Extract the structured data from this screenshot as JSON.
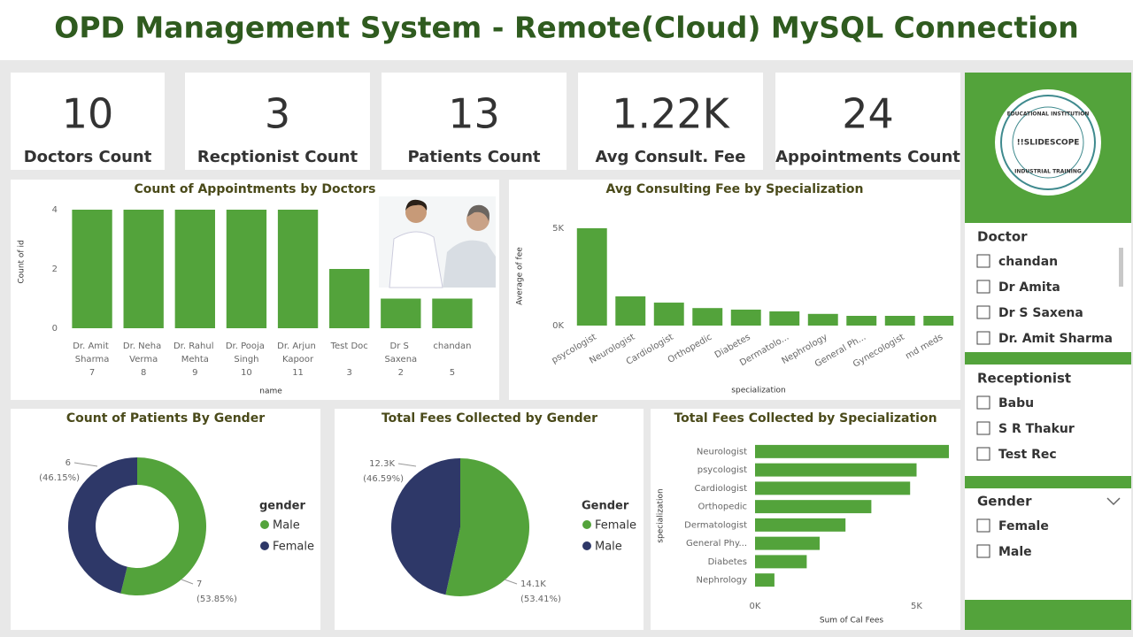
{
  "header": {
    "title": "OPD Management System - Remote(Cloud) MySQL Connection"
  },
  "cards": [
    {
      "value": "10",
      "label": "Doctors Count"
    },
    {
      "value": "3",
      "label": "Recptionist Count"
    },
    {
      "value": "13",
      "label": "Patients Count"
    },
    {
      "value": "1.22K",
      "label": "Avg Consult. Fee"
    },
    {
      "value": "24",
      "label": "Appointments Count"
    }
  ],
  "chart_data": [
    {
      "type": "bar",
      "title": "Count of Appointments by Doctors",
      "y_label": "Count of id",
      "x_label": "name",
      "categories": [
        "Dr. Amit Sharma",
        "Dr. Neha Verma",
        "Dr. Rahul Mehta",
        "Dr. Pooja Singh",
        "Dr. Arjun Kapoor",
        "Test Doc",
        "Dr S Saxena",
        "chandan"
      ],
      "subcategories": [
        "7",
        "8",
        "9",
        "10",
        "11",
        "3",
        "2",
        "5"
      ],
      "values": [
        4,
        4,
        4,
        4,
        4,
        2,
        1,
        1
      ],
      "color": "#53a33b",
      "ylim": [
        0,
        4
      ],
      "yticks": [
        0,
        2,
        4
      ]
    },
    {
      "type": "bar",
      "title": "Avg Consulting Fee by Specialization",
      "y_label": "Average of fee",
      "x_label": "specialization",
      "categories": [
        "psycologist",
        "Neurologist",
        "Cardiologist",
        "Orthopedic",
        "Diabetes",
        "Dermatolo...",
        "Nephrology",
        "General Ph...",
        "Gynecologist",
        "md meds"
      ],
      "values": [
        5000,
        1500,
        1180,
        900,
        820,
        730,
        600,
        500,
        500,
        500
      ],
      "color": "#53a33b",
      "ylim": [
        0,
        5000
      ],
      "yticks": [
        {
          "value": 0,
          "label": "0K"
        },
        {
          "value": 5000,
          "label": "5K"
        }
      ]
    },
    {
      "type": "donut",
      "title": "Count of Patients By Gender",
      "legend_title": "gender",
      "categories": [
        "Male",
        "Female"
      ],
      "values": [
        7,
        6
      ],
      "colors": [
        "#53a33b",
        "#2e3868"
      ],
      "percent_labels": [
        "(53.85%)",
        "(46.15%)"
      ]
    },
    {
      "type": "pie",
      "title": "Total Fees Collected by Gender",
      "legend_title": "Gender",
      "categories": [
        "Female",
        "Male"
      ],
      "values": [
        14100,
        12300
      ],
      "value_labels": [
        "14.1K",
        "12.3K"
      ],
      "colors": [
        "#53a33b",
        "#2e3868"
      ],
      "percent_labels": [
        "(53.41%)",
        "(46.59%)"
      ]
    },
    {
      "type": "hbar",
      "title": "Total Fees Collected by Specialization",
      "y_label": "specialization",
      "x_label": "Sum of Cal Fees",
      "categories": [
        "Neurologist",
        "psycologist",
        "Cardiologist",
        "Orthopedic",
        "Dermatologist",
        "General Phy...",
        "Diabetes",
        "Nephrology"
      ],
      "values": [
        6000,
        5000,
        4800,
        3600,
        2800,
        2000,
        1600,
        600
      ],
      "color": "#53a33b",
      "xlim": [
        0,
        6000
      ],
      "xticks": [
        {
          "value": 0,
          "label": "0K"
        },
        {
          "value": 5000,
          "label": "5K"
        }
      ]
    }
  ],
  "logo": {
    "top": "EDUCATIONAL INSTITUTION",
    "name": "!!SLIDESCOPE",
    "bottom": "INDUSTRIAL TRAINING"
  },
  "slicers": [
    {
      "title": "Doctor",
      "items": [
        "chandan",
        "Dr Amita",
        "Dr S Saxena",
        "Dr. Amit Sharma"
      ]
    },
    {
      "title": "Receptionist",
      "items": [
        "Babu",
        "S R Thakur",
        "Test Rec"
      ]
    },
    {
      "title": "Gender",
      "items": [
        "Female",
        "Male"
      ]
    }
  ]
}
